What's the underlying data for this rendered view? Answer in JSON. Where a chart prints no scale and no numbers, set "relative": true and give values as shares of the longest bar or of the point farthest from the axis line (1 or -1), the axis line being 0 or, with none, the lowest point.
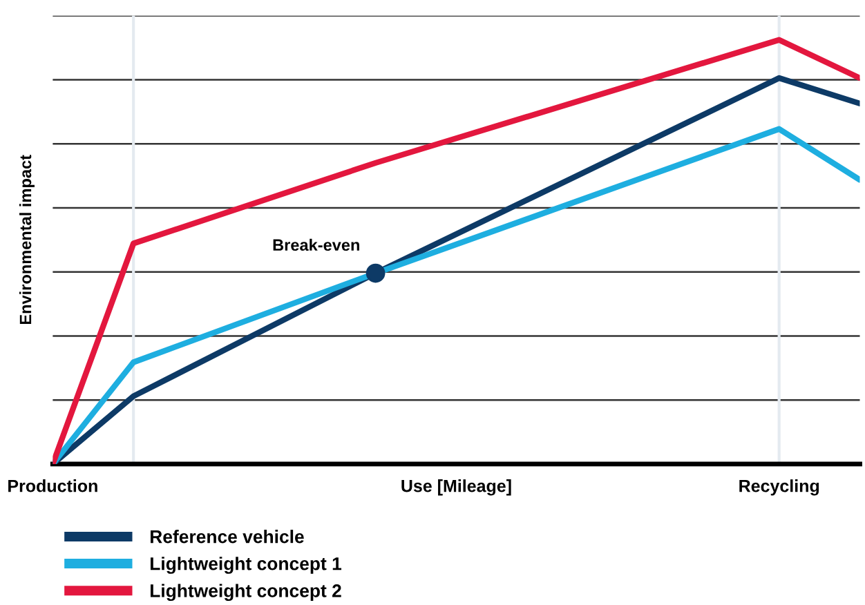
{
  "chart_data": {
    "type": "line",
    "relative": true,
    "ylabel": "Environmental impact",
    "categories": [
      "Production",
      null,
      null,
      null,
      null,
      "Use [Mileage]",
      null,
      null,
      null,
      "Recycling",
      null
    ],
    "series": [
      {
        "name": "Reference vehicle",
        "color": "#0d3a66",
        "values": [
          0,
          0.16,
          null,
          null,
          0.45,
          null,
          null,
          null,
          null,
          0.91,
          0.85
        ]
      },
      {
        "name": "Lightweight concept 1",
        "color": "#1eaee0",
        "values": [
          0,
          0.24,
          null,
          null,
          0.45,
          null,
          null,
          null,
          null,
          0.79,
          0.67
        ]
      },
      {
        "name": "Lightweight concept 2",
        "color": "#e3173e",
        "values": [
          0,
          0.52,
          null,
          null,
          0.71,
          null,
          null,
          null,
          null,
          1.0,
          0.91
        ]
      }
    ],
    "annotations": [
      "Break-even"
    ],
    "grid": true,
    "legend": "bottom left",
    "marker": "none",
    "line_style": "solid"
  }
}
